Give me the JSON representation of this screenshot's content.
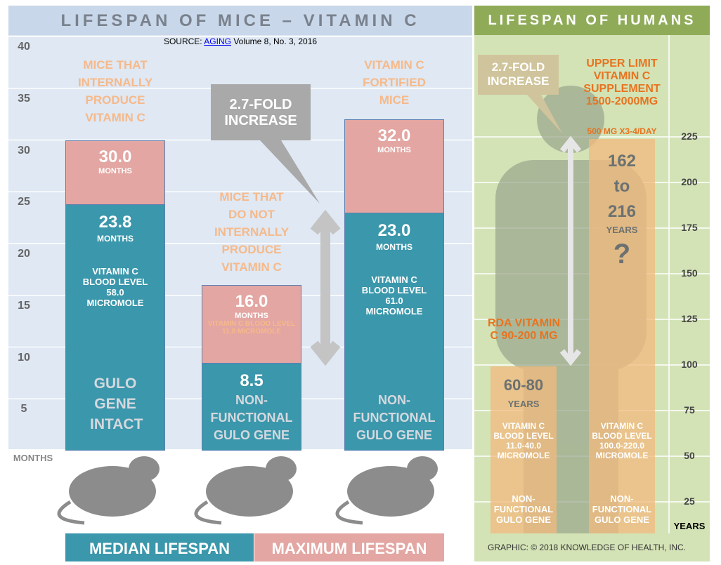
{
  "chart_data": {
    "type": "bar",
    "title": "LIFESPAN OF MICE – VITAMIN C",
    "source": {
      "prefix": "SOURCE:",
      "link": "AGING",
      "suffix": "Volume 8, No. 3, 2016"
    },
    "y_label": "MONTHS",
    "ylim": [
      0,
      40
    ],
    "yticks": [
      5,
      10,
      15,
      20,
      25,
      30,
      35,
      40
    ],
    "categories": [
      "MICE THAT INTERNALLY PRODUCE VITAMIN C",
      "MICE THAT DO NOT INTERNALLY PRODUCE VITAMIN C",
      "VITAMIN C FORTIFIED MICE"
    ],
    "series": [
      {
        "name": "MAXIMUM LIFESPAN",
        "color": "#e3a6a2",
        "values": [
          30,
          16,
          32
        ],
        "value_labels": [
          "30.0",
          "16.0",
          "32.0"
        ]
      },
      {
        "name": "MEDIAN LIFESPAN",
        "color": "#3b97ab",
        "values": [
          23.8,
          8.5,
          23
        ],
        "value_labels": [
          "23.8",
          "8.5",
          "23.0"
        ]
      }
    ],
    "bar_unit": "MONTHS",
    "blood_levels": [
      "VITAMIN C BLOOD LEVEL 58.0 MICROMOLE",
      "VITAMIN C BLOOD LEVEL 11.0 MICROMOLE",
      "VITAMIN C BLOOD LEVEL 61.0 MICROMOLE"
    ],
    "genes": [
      "GULO GENE INTACT",
      "NON-FUNCTIONAL GULO GENE",
      "NON-FUNCTIONAL GULO GENE"
    ],
    "annotation": "2.7-FOLD INCREASE"
  },
  "humans": {
    "title": "LIFESPAN OF HUMANS",
    "annotation": "2.7-FOLD INCREASE",
    "y_label": "YEARS",
    "ylim": [
      0,
      280
    ],
    "yticks": [
      25,
      50,
      75,
      100,
      125,
      150,
      175,
      200,
      225
    ],
    "groups": [
      {
        "label": "RDA VITAMIN C 90-200 MG",
        "range": "60-80",
        "unit": "YEARS",
        "blood": "VITAMIN C BLOOD LEVEL 11.0-40.0 MICROMOLE",
        "gene": "NON-FUNCTIONAL GULO GENE"
      },
      {
        "label": "UPPER LIMIT VITAMIN C SUPPLEMENT 1500-2000MG",
        "dose": "500 MG X3-4/DAY",
        "range": [
          "162",
          "to",
          "216"
        ],
        "unit": "YEARS",
        "mark": "?",
        "blood": "VITAMIN C BLOOD LEVEL 100.0-220.0 MICROMOLE",
        "gene": "NON-FUNCTIONAL GULO GENE"
      }
    ]
  },
  "credit": "GRAPHIC: © 2018 KNOWLEDGE OF HEALTH, INC."
}
